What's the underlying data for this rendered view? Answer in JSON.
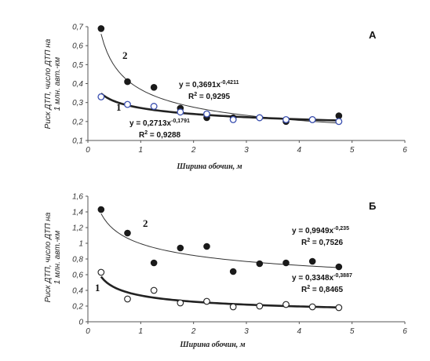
{
  "chart_data": [
    {
      "type": "scatter",
      "panel_label": "А",
      "ylabel_line1": "Риск  ДТП, число ДТП на",
      "ylabel_line2": "1 млн. авт.-км",
      "xlabel": "Ширина обочин, м",
      "xlim": [
        0,
        6
      ],
      "ylim": [
        0.1,
        0.7
      ],
      "x_ticks": [
        "0",
        "1",
        "2",
        "3",
        "4",
        "5",
        "6"
      ],
      "y_ticks": [
        "0,1",
        "0,2",
        "0,3",
        "0,4",
        "0,5",
        "0,6",
        "0,7"
      ],
      "grid": false,
      "series": [
        {
          "label": "2",
          "marker": "filled",
          "x": [
            0.25,
            0.75,
            1.25,
            1.75,
            2.25,
            2.75,
            3.25,
            3.75,
            4.25,
            4.75
          ],
          "y": [
            0.69,
            0.41,
            0.38,
            0.27,
            0.22,
            0.22,
            0.22,
            0.2,
            0.21,
            0.23
          ],
          "fit": {
            "a": 0.3691,
            "b": -0.4211,
            "eq_base": "y = 0,3691x",
            "eq_exp": "-0,4211",
            "r2_prefix": "R",
            "r2_sup": "2",
            "r2_value": " = 0,9295"
          }
        },
        {
          "label": "1",
          "marker": "open",
          "x": [
            0.25,
            0.75,
            1.25,
            1.75,
            2.25,
            2.75,
            3.25,
            3.75,
            4.25,
            4.75
          ],
          "y": [
            0.33,
            0.29,
            0.28,
            0.25,
            0.24,
            0.21,
            0.22,
            0.21,
            0.21,
            0.2
          ],
          "fit": {
            "a": 0.2713,
            "b": -0.1791,
            "eq_base": "y = 0,2713x",
            "eq_exp": "-0,1791",
            "r2_prefix": "R",
            "r2_sup": "2",
            "r2_value": " = 0,9288"
          }
        }
      ]
    },
    {
      "type": "scatter",
      "panel_label": "Б",
      "ylabel_line1": "Риск  ДТП, число ДТП на",
      "ylabel_line2": "1 млн. авт.-км",
      "xlabel": "Ширина обочин, м",
      "xlim": [
        0,
        6
      ],
      "ylim": [
        0,
        1.6
      ],
      "x_ticks": [
        "0",
        "1",
        "2",
        "3",
        "4",
        "5",
        "6"
      ],
      "y_ticks": [
        "0",
        "0,2",
        "0,4",
        "0,6",
        "0,8",
        "1",
        "1,2",
        "1,4",
        "1,6"
      ],
      "grid": false,
      "series": [
        {
          "label": "2",
          "marker": "filled",
          "x": [
            0.25,
            0.75,
            1.25,
            1.75,
            2.25,
            2.75,
            3.25,
            3.75,
            4.25,
            4.75
          ],
          "y": [
            1.43,
            1.13,
            0.75,
            0.94,
            0.96,
            0.64,
            0.74,
            0.75,
            0.77,
            0.7
          ],
          "fit": {
            "a": 0.9949,
            "b": -0.235,
            "eq_base": "y = 0,9949x",
            "eq_exp": "-0,235",
            "r2_prefix": "R",
            "r2_sup": "2",
            "r2_value": " = 0,7526"
          }
        },
        {
          "label": "1",
          "marker": "open",
          "x": [
            0.25,
            0.75,
            1.25,
            1.75,
            2.25,
            2.75,
            3.25,
            3.75,
            4.25,
            4.75
          ],
          "y": [
            0.63,
            0.29,
            0.4,
            0.24,
            0.26,
            0.19,
            0.2,
            0.22,
            0.19,
            0.18
          ],
          "fit": {
            "a": 0.3348,
            "b": -0.3887,
            "eq_base": "y = 0,3348x",
            "eq_exp": "-0,3887",
            "r2_prefix": "R",
            "r2_sup": "2",
            "r2_value": " = 0,8465"
          }
        }
      ]
    }
  ]
}
